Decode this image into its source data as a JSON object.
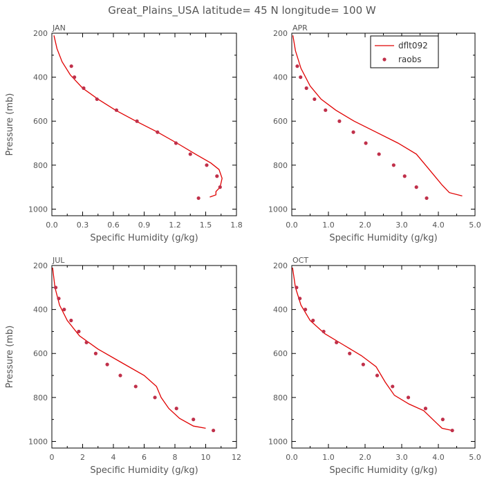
{
  "title": "Great_Plains_USA   latitude= 45 N longitude= 100 W",
  "colors": {
    "model_line": "#e00000",
    "obs_point": "#c0304a",
    "text": "#555555"
  },
  "legend": {
    "model_label": "dflt092",
    "obs_label": "raobs",
    "placement": "top-right of APR panel"
  },
  "chart_data": [
    {
      "type": "line",
      "panel": "JAN",
      "xlabel": "Specific Humidity (g/kg)",
      "ylabel": "Pressure (mb)",
      "xlim": [
        0.0,
        1.8
      ],
      "ylim": [
        200,
        1030
      ],
      "y_inverted": true,
      "xticks": [
        "0.0",
        "0.3",
        "0.6",
        "0.9",
        "1.2",
        "1.5",
        "1.8"
      ],
      "yticks": [
        "200",
        "400",
        "600",
        "800",
        "1000"
      ],
      "series": [
        {
          "name": "dflt092",
          "kind": "line",
          "x": [
            0.02,
            0.05,
            0.1,
            0.18,
            0.3,
            0.45,
            0.62,
            0.82,
            1.03,
            1.22,
            1.4,
            1.55,
            1.63,
            1.66,
            1.64,
            1.6,
            1.6,
            1.54
          ],
          "y": [
            210,
            270,
            330,
            390,
            450,
            500,
            550,
            600,
            650,
            700,
            750,
            790,
            820,
            860,
            900,
            920,
            935,
            945
          ]
        },
        {
          "name": "raobs",
          "kind": "scatter",
          "x": [
            0.19,
            0.22,
            0.31,
            0.44,
            0.63,
            0.83,
            1.03,
            1.21,
            1.35,
            1.51,
            1.61,
            1.64,
            1.43
          ],
          "y": [
            350,
            400,
            450,
            500,
            550,
            600,
            650,
            700,
            750,
            800,
            850,
            900,
            950
          ]
        }
      ]
    },
    {
      "type": "line",
      "panel": "APR",
      "xlabel": "Specific Humidity (g/kg)",
      "ylabel": "",
      "xlim": [
        0.0,
        5.0
      ],
      "ylim": [
        200,
        1030
      ],
      "y_inverted": true,
      "xticks": [
        "0.0",
        "1.0",
        "2.0",
        "3.0",
        "4.0",
        "5.0"
      ],
      "yticks": [
        "200",
        "400",
        "600",
        "800",
        "1000"
      ],
      "series": [
        {
          "name": "dflt092",
          "kind": "line",
          "x": [
            0.03,
            0.1,
            0.25,
            0.5,
            0.8,
            1.2,
            1.7,
            2.3,
            2.9,
            3.4,
            3.65,
            3.9,
            4.1,
            4.3,
            4.65
          ],
          "y": [
            210,
            280,
            360,
            440,
            500,
            550,
            600,
            650,
            700,
            750,
            800,
            850,
            890,
            925,
            940
          ]
        },
        {
          "name": "raobs",
          "kind": "scatter",
          "x": [
            0.15,
            0.24,
            0.4,
            0.62,
            0.92,
            1.3,
            1.68,
            2.02,
            2.38,
            2.78,
            3.08,
            3.4,
            3.68
          ],
          "y": [
            350,
            400,
            450,
            500,
            550,
            600,
            650,
            700,
            750,
            800,
            850,
            900,
            950
          ]
        }
      ]
    },
    {
      "type": "line",
      "panel": "JUL",
      "xlabel": "Specific Humidity (g/kg)",
      "ylabel": "Pressure (mb)",
      "xlim": [
        0,
        12
      ],
      "ylim": [
        200,
        1030
      ],
      "y_inverted": true,
      "xticks": [
        "0",
        "2",
        "4",
        "6",
        "8",
        "10",
        "12"
      ],
      "yticks": [
        "200",
        "400",
        "600",
        "800",
        "1000"
      ],
      "series": [
        {
          "name": "dflt092",
          "kind": "line",
          "x": [
            0.05,
            0.2,
            0.5,
            1.0,
            1.8,
            3.0,
            4.5,
            6.0,
            6.8,
            7.1,
            7.6,
            8.3,
            9.2,
            10.0
          ],
          "y": [
            210,
            300,
            380,
            450,
            520,
            580,
            640,
            700,
            750,
            800,
            850,
            895,
            930,
            940
          ]
        },
        {
          "name": "raobs",
          "kind": "scatter",
          "x": [
            0.25,
            0.45,
            0.8,
            1.25,
            1.75,
            2.25,
            2.85,
            3.6,
            4.45,
            5.45,
            6.7,
            8.1,
            9.2,
            10.5
          ],
          "y": [
            300,
            350,
            400,
            450,
            500,
            550,
            600,
            650,
            700,
            750,
            800,
            850,
            900,
            950
          ]
        }
      ]
    },
    {
      "type": "line",
      "panel": "OCT",
      "xlabel": "Specific Humidity (g/kg)",
      "ylabel": "",
      "xlim": [
        0.0,
        5.0
      ],
      "ylim": [
        200,
        1030
      ],
      "y_inverted": true,
      "xticks": [
        "0.0",
        "1.0",
        "2.0",
        "3.0",
        "4.0",
        "5.0"
      ],
      "yticks": [
        "200",
        "400",
        "600",
        "800",
        "1000"
      ],
      "series": [
        {
          "name": "dflt092",
          "kind": "line",
          "x": [
            0.02,
            0.1,
            0.25,
            0.5,
            0.9,
            1.4,
            1.9,
            2.3,
            2.55,
            2.8,
            3.2,
            3.6,
            3.85,
            4.1,
            4.38
          ],
          "y": [
            210,
            300,
            380,
            450,
            510,
            560,
            610,
            660,
            730,
            790,
            830,
            860,
            900,
            940,
            950
          ]
        },
        {
          "name": "raobs",
          "kind": "scatter",
          "x": [
            0.13,
            0.22,
            0.37,
            0.58,
            0.87,
            1.22,
            1.58,
            1.95,
            2.33,
            2.75,
            3.18,
            3.65,
            4.12,
            4.38
          ],
          "y": [
            300,
            350,
            400,
            450,
            500,
            550,
            600,
            650,
            700,
            750,
            800,
            850,
            900,
            950
          ]
        }
      ]
    }
  ]
}
